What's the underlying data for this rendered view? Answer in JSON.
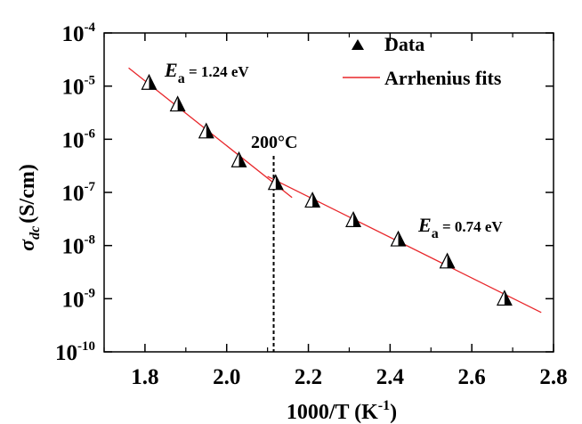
{
  "chart_data": {
    "type": "scatter",
    "xlabel": "1000/T (K",
    "xlabel_sup": "-1",
    "xlabel_close": ")",
    "ylabel": "(S/cm)",
    "ylabel_symbol": "σ",
    "ylabel_sub": "dc",
    "x_scale": "linear",
    "y_scale": "log",
    "xlim": [
      1.7,
      2.8
    ],
    "ylim": [
      1e-10,
      0.0001
    ],
    "x_ticks": [
      1.8,
      2.0,
      2.2,
      2.4,
      2.6,
      2.8
    ],
    "x_tick_labels": [
      "1.8",
      "2.0",
      "2.2",
      "2.4",
      "2.6",
      "2.8"
    ],
    "y_ticks": [
      -10,
      -9,
      -8,
      -7,
      -6,
      -5,
      -4
    ],
    "y_tick_base": "10",
    "y_tick_exponents": [
      "-10",
      "-9",
      "-8",
      "-7",
      "-6",
      "-5",
      "-4"
    ],
    "legend_position": "top-right",
    "grid": false,
    "series": [
      {
        "name": "Data",
        "marker": "half-filled triangle",
        "color": "#000000",
        "x": [
          1.81,
          1.88,
          1.95,
          2.03,
          2.12,
          2.21,
          2.31,
          2.42,
          2.54,
          2.68
        ],
        "y": [
          1.15e-05,
          4.5e-06,
          1.4e-06,
          4e-07,
          1.5e-07,
          7e-08,
          3e-08,
          1.3e-08,
          5e-09,
          1e-09
        ]
      },
      {
        "name": "Arrhenius fits",
        "color": "#e8262a",
        "segments": [
          {
            "x": [
              1.76,
              2.16
            ],
            "y": [
              2.2e-05,
              8e-08
            ]
          },
          {
            "x": [
              2.1,
              2.77
            ],
            "y": [
              2e-07,
              5.5e-10
            ]
          }
        ]
      }
    ],
    "annotations": {
      "ea_high_symbol": "E",
      "ea_high_sub": "a",
      "ea_high_value": " = 1.24 eV",
      "ea_low_symbol": "E",
      "ea_low_sub": "a",
      "ea_low_value": " = 0.74 eV",
      "temp_label": "200°C",
      "temp_line_x": 2.115
    }
  }
}
